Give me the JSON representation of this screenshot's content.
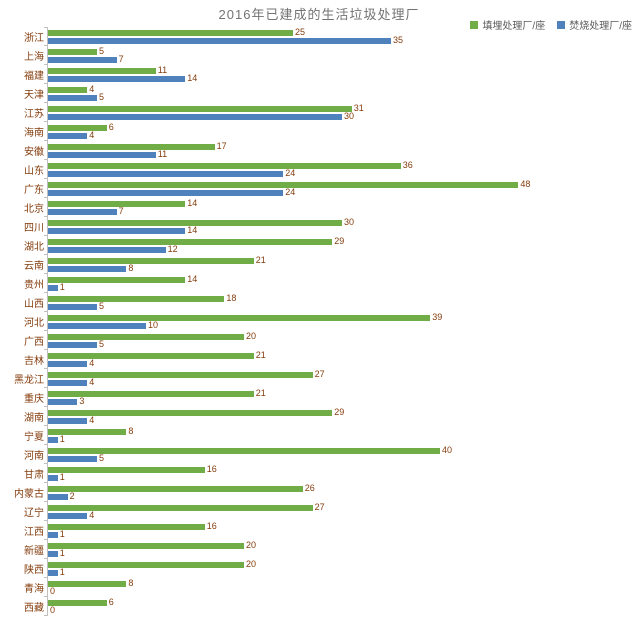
{
  "title": "2016年已建成的生活垃圾处理厂",
  "legend": [
    {
      "label": "填埋处理厂/座",
      "color": "#70AD47"
    },
    {
      "label": "焚烧处理厂/座",
      "color": "#4F81BD"
    }
  ],
  "chart_data": {
    "type": "bar",
    "orientation": "horizontal",
    "title": "2016年已建成的生活垃圾处理厂",
    "categories": [
      "浙江",
      "上海",
      "福建",
      "天津",
      "江苏",
      "海南",
      "安徽",
      "山东",
      "广东",
      "北京",
      "四川",
      "湖北",
      "云南",
      "贵州",
      "山西",
      "河北",
      "广西",
      "吉林",
      "黑龙江",
      "重庆",
      "湖南",
      "宁夏",
      "河南",
      "甘肃",
      "内蒙古",
      "辽宁",
      "江西",
      "新疆",
      "陕西",
      "青海",
      "西藏"
    ],
    "series": [
      {
        "name": "填埋处理厂/座",
        "color": "#70AD47",
        "values": [
          25,
          5,
          11,
          4,
          31,
          6,
          17,
          36,
          48,
          14,
          30,
          29,
          21,
          14,
          18,
          39,
          20,
          21,
          27,
          21,
          29,
          8,
          40,
          16,
          26,
          27,
          16,
          20,
          20,
          8,
          6
        ]
      },
      {
        "name": "焚烧处理厂/座",
        "color": "#4F81BD",
        "values": [
          35,
          7,
          14,
          5,
          30,
          4,
          11,
          24,
          24,
          7,
          14,
          12,
          8,
          1,
          5,
          10,
          5,
          4,
          4,
          3,
          4,
          1,
          5,
          1,
          2,
          4,
          1,
          1,
          1,
          0,
          0
        ]
      }
    ],
    "xlim": [
      0,
      60
    ],
    "grid": false,
    "legend_position": "top-right",
    "value_labels": true,
    "label_color": "#843C0C",
    "axis_color": "#BFBFBF"
  }
}
